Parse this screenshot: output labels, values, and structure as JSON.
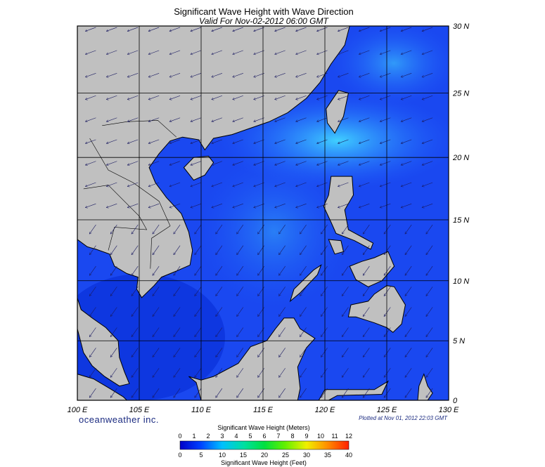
{
  "title": "Significant Wave Height with Wave Direction",
  "subtitle": "Valid For Nov-02-2012 06:00 GMT",
  "lat_labels": [
    "30 N",
    "25 N",
    "20 N",
    "15 N",
    "10 N",
    "5 N",
    "0"
  ],
  "lon_labels": [
    "100 E",
    "105 E",
    "110 E",
    "115 E",
    "120 E",
    "125 E",
    "130 E"
  ],
  "brand": "oceanweather inc.",
  "plotted": "Plotted at Nov 01, 2012 22:03 GMT",
  "colorbar": {
    "meters_title": "Significant Wave Height (Meters)",
    "meters_ticks": [
      0,
      1,
      2,
      3,
      4,
      5,
      6,
      7,
      8,
      9,
      10,
      11,
      12
    ],
    "feet_ticks": [
      0,
      5,
      10,
      15,
      20,
      25,
      30,
      35,
      40
    ],
    "feet_title": "Significant Wave Height (Feet)"
  }
}
